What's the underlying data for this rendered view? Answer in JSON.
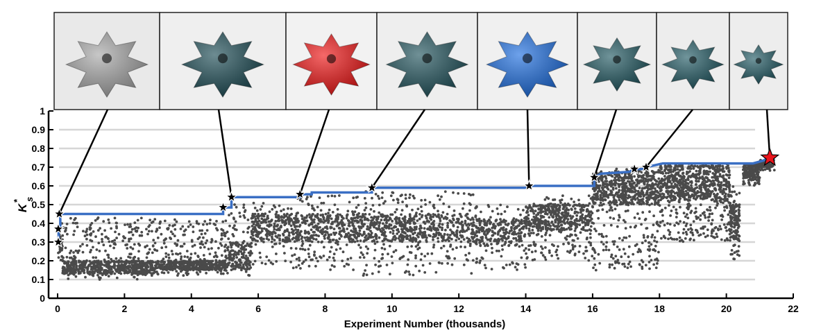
{
  "chart_data": {
    "type": "scatter",
    "xlabel": "Experiment Number (thousands)",
    "ylabel": "K",
    "ylabel_superscript": "*",
    "ylabel_subscript": "s",
    "xlim": [
      0,
      22
    ],
    "ylim": [
      0,
      1
    ],
    "xticks": [
      "0",
      "2",
      "4",
      "6",
      "8",
      "10",
      "12",
      "14",
      "16",
      "18",
      "20",
      "22"
    ],
    "yticks": [
      "0",
      "0.1",
      "0.2",
      "0.3",
      "0.4",
      "0.5",
      "0.6",
      "0.7",
      "0.8",
      "0.9",
      "1"
    ],
    "grid": "horizontal",
    "colors": {
      "scatter": "#4a4a4a",
      "best_line": "#3a6fc4",
      "grid": "#d6d6d6",
      "star": "#000000",
      "final_star": "#e8141c"
    },
    "scatter_clusters": [
      {
        "x": [
          0.02,
          0.15
        ],
        "y": [
          0.2,
          0.4
        ],
        "core": [
          0.2,
          0.35
        ],
        "count": 40
      },
      {
        "x": [
          0.15,
          3.0
        ],
        "y": [
          0.1,
          0.43
        ],
        "core": [
          0.13,
          0.2
        ],
        "count": 750
      },
      {
        "x": [
          3.0,
          5.0
        ],
        "y": [
          0.12,
          0.42
        ],
        "core": [
          0.15,
          0.2
        ],
        "count": 520
      },
      {
        "x": [
          5.0,
          5.8
        ],
        "y": [
          0.12,
          0.5
        ],
        "core": [
          0.15,
          0.3
        ],
        "count": 200
      },
      {
        "x": [
          5.8,
          7.0
        ],
        "y": [
          0.18,
          0.52
        ],
        "core": [
          0.3,
          0.45
        ],
        "count": 260
      },
      {
        "x": [
          7.0,
          9.0
        ],
        "y": [
          0.15,
          0.55
        ],
        "core": [
          0.3,
          0.45
        ],
        "count": 420
      },
      {
        "x": [
          9.0,
          12.5
        ],
        "y": [
          0.12,
          0.57
        ],
        "core": [
          0.3,
          0.45
        ],
        "count": 720
      },
      {
        "x": [
          12.5,
          14.0
        ],
        "y": [
          0.15,
          0.5
        ],
        "core": [
          0.28,
          0.42
        ],
        "count": 300
      },
      {
        "x": [
          14.0,
          16.0
        ],
        "y": [
          0.2,
          0.55
        ],
        "core": [
          0.36,
          0.5
        ],
        "count": 520
      },
      {
        "x": [
          16.0,
          18.0
        ],
        "y": [
          0.15,
          0.7
        ],
        "core": [
          0.5,
          0.68
        ],
        "count": 750
      },
      {
        "x": [
          18.0,
          20.1
        ],
        "y": [
          0.3,
          0.72
        ],
        "core": [
          0.52,
          0.71
        ],
        "count": 820
      },
      {
        "x": [
          20.1,
          20.4
        ],
        "y": [
          0.2,
          0.6
        ],
        "core": [
          0.3,
          0.5
        ],
        "count": 150
      },
      {
        "x": [
          20.5,
          21.0
        ],
        "y": [
          0.6,
          0.72
        ],
        "core": [
          0.64,
          0.72
        ],
        "count": 200
      },
      {
        "x": [
          21.0,
          21.45
        ],
        "y": [
          0.68,
          0.74
        ],
        "core": [
          0.7,
          0.74
        ],
        "count": 80
      }
    ],
    "best_so_far": [
      [
        0.03,
        0.3
      ],
      [
        0.03,
        0.37
      ],
      [
        0.08,
        0.37
      ],
      [
        0.08,
        0.45
      ],
      [
        4.95,
        0.45
      ],
      [
        4.95,
        0.485
      ],
      [
        5.2,
        0.485
      ],
      [
        5.2,
        0.54
      ],
      [
        7.25,
        0.54
      ],
      [
        7.25,
        0.555
      ],
      [
        7.6,
        0.555
      ],
      [
        7.6,
        0.565
      ],
      [
        9.4,
        0.565
      ],
      [
        9.4,
        0.59
      ],
      [
        14.1,
        0.59
      ],
      [
        14.1,
        0.6
      ],
      [
        16.05,
        0.6
      ],
      [
        16.05,
        0.645
      ],
      [
        16.25,
        0.665
      ],
      [
        17.1,
        0.675
      ],
      [
        17.25,
        0.69
      ],
      [
        17.5,
        0.69
      ],
      [
        17.6,
        0.7
      ],
      [
        18.1,
        0.72
      ],
      [
        20.8,
        0.72
      ],
      [
        21.1,
        0.735
      ],
      [
        21.3,
        0.75
      ],
      [
        21.45,
        0.75
      ]
    ],
    "stars": [
      [
        0.02,
        0.3
      ],
      [
        0.02,
        0.37
      ],
      [
        0.05,
        0.45
      ],
      [
        4.95,
        0.485
      ],
      [
        5.2,
        0.54
      ],
      [
        7.25,
        0.555
      ],
      [
        9.4,
        0.59
      ],
      [
        14.1,
        0.6
      ],
      [
        16.05,
        0.645
      ],
      [
        17.25,
        0.69
      ],
      [
        17.6,
        0.7
      ]
    ],
    "final_star": [
      21.3,
      0.75
    ],
    "photo_insets": [
      {
        "color": "#a9a9a9",
        "background": "#e9e9e9",
        "star_x": 0.05,
        "star_y": 0.45
      },
      {
        "color": "#1f4e57",
        "background": "#efefef",
        "star_x": 5.2,
        "star_y": 0.54
      },
      {
        "color": "#f01818",
        "background": "#f2f2f2",
        "star_x": 7.25,
        "star_y": 0.555
      },
      {
        "color": "#23555e",
        "background": "#eeeeee",
        "star_x": 9.4,
        "star_y": 0.59
      },
      {
        "color": "#1f6fe0",
        "background": "#f0f0f0",
        "star_x": 14.1,
        "star_y": 0.6
      },
      {
        "color": "#235a63",
        "background": "#eeeeee",
        "star_x": 16.05,
        "star_y": 0.645
      },
      {
        "color": "#245c66",
        "background": "#ededed",
        "star_x": 17.6,
        "star_y": 0.7
      },
      {
        "color": "#245c66",
        "background": "#ededed",
        "star_x": 21.3,
        "star_y": 0.75
      }
    ]
  }
}
